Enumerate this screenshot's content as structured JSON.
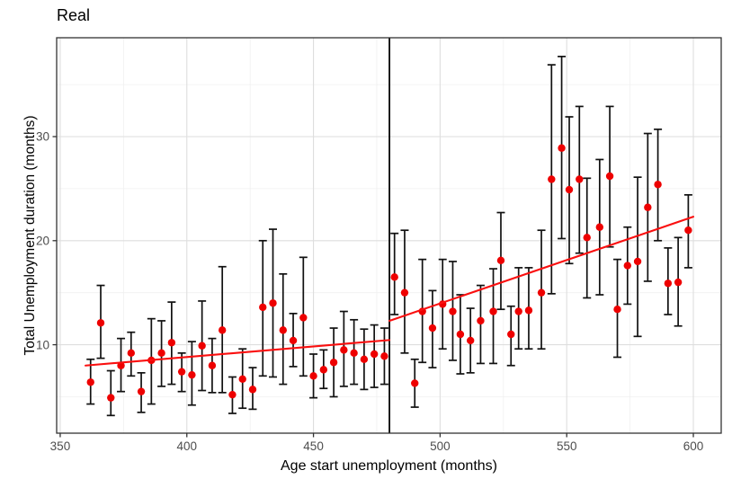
{
  "chart_data": {
    "type": "scatter",
    "title": "Real",
    "xlabel": "Age start unemployment (months)",
    "ylabel": "Total Unemployment duration (months)",
    "xlim": [
      348.6,
      611.0
    ],
    "ylim": [
      1.5,
      39.5
    ],
    "x_ticks": [
      350,
      400,
      450,
      500,
      550,
      600
    ],
    "x_minor_ticks": [
      375,
      425,
      475,
      525,
      575
    ],
    "y_ticks": [
      10,
      20,
      30
    ],
    "y_minor_ticks": [
      5,
      15,
      25,
      35
    ],
    "grid": true,
    "legend": false,
    "cutoff_line_x": 480,
    "colors": {
      "point": "#EE0000",
      "trend": "#FA0F0F",
      "error_bar": "#111111",
      "cutoff": "#000000",
      "grid_major": "#DEDEDE",
      "grid_minor": "#F0F0F0",
      "panel_border": "#333333",
      "tick_label": "#4D4D4D",
      "text": "#000000",
      "panel_bg": "#FFFFFF"
    },
    "trend_segments": [
      {
        "x1": 360,
        "y1": 8.0,
        "x2": 480,
        "y2": 10.45
      },
      {
        "x1": 480,
        "y1": 12.3,
        "x2": 600,
        "y2": 22.3
      }
    ],
    "points": [
      {
        "x": 362,
        "y": 6.4,
        "lo": 4.3,
        "hi": 8.6
      },
      {
        "x": 366,
        "y": 12.1,
        "lo": 8.7,
        "hi": 15.7
      },
      {
        "x": 370,
        "y": 4.9,
        "lo": 3.2,
        "hi": 7.5
      },
      {
        "x": 374,
        "y": 8.0,
        "lo": 5.5,
        "hi": 10.6
      },
      {
        "x": 378,
        "y": 9.2,
        "lo": 7.0,
        "hi": 11.2
      },
      {
        "x": 382,
        "y": 5.5,
        "lo": 3.5,
        "hi": 7.3
      },
      {
        "x": 386,
        "y": 8.5,
        "lo": 4.3,
        "hi": 12.5
      },
      {
        "x": 390,
        "y": 9.2,
        "lo": 6.0,
        "hi": 12.3
      },
      {
        "x": 394,
        "y": 10.2,
        "lo": 6.2,
        "hi": 14.1
      },
      {
        "x": 398,
        "y": 7.4,
        "lo": 5.5,
        "hi": 9.2
      },
      {
        "x": 402,
        "y": 7.1,
        "lo": 4.2,
        "hi": 10.3
      },
      {
        "x": 406,
        "y": 9.9,
        "lo": 5.6,
        "hi": 14.2
      },
      {
        "x": 410,
        "y": 8.0,
        "lo": 5.4,
        "hi": 10.6
      },
      {
        "x": 414,
        "y": 11.4,
        "lo": 5.4,
        "hi": 17.5
      },
      {
        "x": 418,
        "y": 5.2,
        "lo": 3.4,
        "hi": 6.9
      },
      {
        "x": 422,
        "y": 6.7,
        "lo": 3.9,
        "hi": 9.6
      },
      {
        "x": 426,
        "y": 5.7,
        "lo": 3.8,
        "hi": 7.8
      },
      {
        "x": 430,
        "y": 13.6,
        "lo": 7.0,
        "hi": 20.0
      },
      {
        "x": 434,
        "y": 14.0,
        "lo": 6.9,
        "hi": 21.1
      },
      {
        "x": 438,
        "y": 11.4,
        "lo": 6.2,
        "hi": 16.8
      },
      {
        "x": 442,
        "y": 10.4,
        "lo": 7.9,
        "hi": 13.0
      },
      {
        "x": 446,
        "y": 12.6,
        "lo": 7.0,
        "hi": 18.4
      },
      {
        "x": 450,
        "y": 7.0,
        "lo": 4.9,
        "hi": 9.1
      },
      {
        "x": 454,
        "y": 7.6,
        "lo": 5.8,
        "hi": 9.5
      },
      {
        "x": 458,
        "y": 8.3,
        "lo": 5.0,
        "hi": 11.6
      },
      {
        "x": 462,
        "y": 9.5,
        "lo": 6.0,
        "hi": 13.2
      },
      {
        "x": 466,
        "y": 9.2,
        "lo": 6.2,
        "hi": 12.4
      },
      {
        "x": 470,
        "y": 8.6,
        "lo": 5.7,
        "hi": 11.5
      },
      {
        "x": 474,
        "y": 9.1,
        "lo": 5.9,
        "hi": 11.9
      },
      {
        "x": 478,
        "y": 8.9,
        "lo": 6.2,
        "hi": 11.6
      },
      {
        "x": 482,
        "y": 16.5,
        "lo": 12.9,
        "hi": 20.7
      },
      {
        "x": 486,
        "y": 15.0,
        "lo": 9.2,
        "hi": 21.0
      },
      {
        "x": 490,
        "y": 6.3,
        "lo": 4.0,
        "hi": 8.6
      },
      {
        "x": 493,
        "y": 13.2,
        "lo": 8.3,
        "hi": 18.2
      },
      {
        "x": 497,
        "y": 11.6,
        "lo": 7.8,
        "hi": 15.2
      },
      {
        "x": 501,
        "y": 13.9,
        "lo": 9.6,
        "hi": 18.2
      },
      {
        "x": 505,
        "y": 13.2,
        "lo": 8.5,
        "hi": 18.0
      },
      {
        "x": 508,
        "y": 11.0,
        "lo": 7.2,
        "hi": 14.8
      },
      {
        "x": 512,
        "y": 10.4,
        "lo": 7.3,
        "hi": 13.5
      },
      {
        "x": 516,
        "y": 12.3,
        "lo": 8.2,
        "hi": 15.7
      },
      {
        "x": 521,
        "y": 13.2,
        "lo": 8.2,
        "hi": 17.3
      },
      {
        "x": 524,
        "y": 18.1,
        "lo": 13.4,
        "hi": 22.7
      },
      {
        "x": 528,
        "y": 11.0,
        "lo": 8.0,
        "hi": 13.7
      },
      {
        "x": 531,
        "y": 13.2,
        "lo": 9.6,
        "hi": 17.4
      },
      {
        "x": 535,
        "y": 13.3,
        "lo": 9.6,
        "hi": 17.4
      },
      {
        "x": 540,
        "y": 15.0,
        "lo": 9.6,
        "hi": 21.0
      },
      {
        "x": 544,
        "y": 25.9,
        "lo": 14.9,
        "hi": 36.9
      },
      {
        "x": 548,
        "y": 28.9,
        "lo": 20.2,
        "hi": 37.7
      },
      {
        "x": 551,
        "y": 24.9,
        "lo": 17.8,
        "hi": 31.9
      },
      {
        "x": 555,
        "y": 25.9,
        "lo": 18.8,
        "hi": 32.9
      },
      {
        "x": 558,
        "y": 20.3,
        "lo": 14.5,
        "hi": 26.0
      },
      {
        "x": 563,
        "y": 21.3,
        "lo": 14.8,
        "hi": 27.8
      },
      {
        "x": 567,
        "y": 26.2,
        "lo": 19.4,
        "hi": 32.9
      },
      {
        "x": 570,
        "y": 13.4,
        "lo": 8.8,
        "hi": 18.2
      },
      {
        "x": 574,
        "y": 17.6,
        "lo": 13.9,
        "hi": 21.3
      },
      {
        "x": 578,
        "y": 18.0,
        "lo": 10.8,
        "hi": 26.1
      },
      {
        "x": 582,
        "y": 23.2,
        "lo": 16.1,
        "hi": 30.3
      },
      {
        "x": 586,
        "y": 25.4,
        "lo": 20.0,
        "hi": 30.7
      },
      {
        "x": 590,
        "y": 15.9,
        "lo": 12.9,
        "hi": 19.3
      },
      {
        "x": 594,
        "y": 16.0,
        "lo": 11.8,
        "hi": 20.3
      },
      {
        "x": 598,
        "y": 21.0,
        "lo": 17.4,
        "hi": 24.4
      }
    ]
  }
}
